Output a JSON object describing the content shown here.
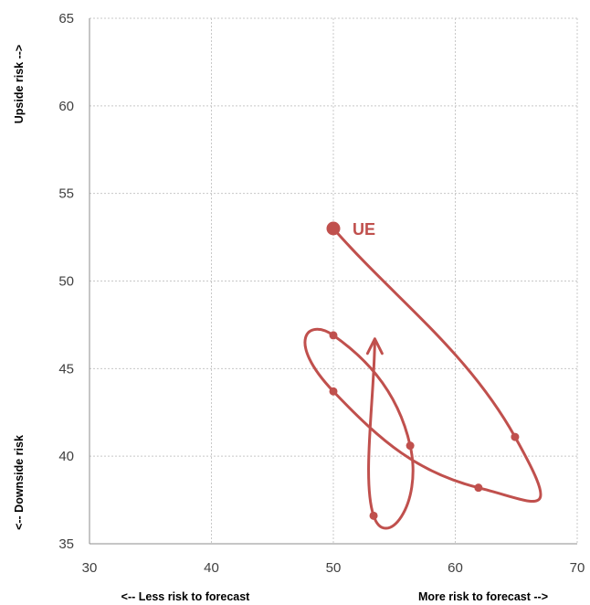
{
  "chart_data": {
    "type": "scatter",
    "title": "",
    "xlim": [
      30,
      70
    ],
    "ylim": [
      35,
      65
    ],
    "xticks": [
      "30",
      "40",
      "50",
      "60",
      "70"
    ],
    "yticks": [
      "35",
      "40",
      "45",
      "50",
      "55",
      "60",
      "65"
    ],
    "x_label_left": "<-- Less risk to forecast",
    "x_label_right": "More risk to forecast -->",
    "y_label_bottom": "<-- Downside risk",
    "y_label_top": "Upside risk -->",
    "grid": true,
    "series": [
      {
        "name": "UE",
        "color": "#c0504d",
        "points": [
          {
            "x": 53.4,
            "y": 46.7
          },
          {
            "x": 53.3,
            "y": 36.6
          },
          {
            "x": 56.3,
            "y": 40.6
          },
          {
            "x": 50.0,
            "y": 46.9
          },
          {
            "x": 50.0,
            "y": 43.7
          },
          {
            "x": 61.9,
            "y": 38.2
          },
          {
            "x": 64.9,
            "y": 41.1
          },
          {
            "x": 50.0,
            "y": 53.0
          }
        ],
        "label": "UE"
      }
    ]
  }
}
